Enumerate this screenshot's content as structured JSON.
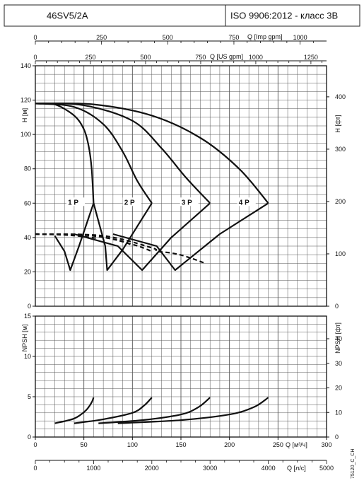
{
  "header": {
    "model": "46SV5/2A",
    "standard": "ISO 9906:2012 - класс 3B"
  },
  "side_code": "75120_C_CH",
  "chart_data": [
    {
      "type": "line",
      "name": "head",
      "ylabel": "H [м]",
      "ylabel_right": "H [фт]",
      "ylim": [
        0,
        140
      ],
      "yticks": [
        0,
        20,
        40,
        60,
        80,
        100,
        120,
        140
      ],
      "yticks_right": [
        0,
        100,
        200,
        300,
        400
      ],
      "xlim": [
        0,
        300
      ],
      "x_unit": "m3/h",
      "top_axes": [
        {
          "label": "Q [Imp gpm]",
          "ticks": [
            0,
            250,
            500,
            750,
            1000
          ]
        },
        {
          "label": "Q [US gpm]",
          "ticks": [
            0,
            250,
            500,
            750,
            1000,
            1250
          ]
        }
      ],
      "series": [
        {
          "name": "1 P",
          "values": [
            [
              0,
              118
            ],
            [
              20,
              117.5
            ],
            [
              40,
              111
            ],
            [
              50,
              103
            ],
            [
              55,
              93
            ],
            [
              58,
              80
            ],
            [
              60,
              60
            ]
          ]
        },
        {
          "name": "2 P",
          "values": [
            [
              0,
              118
            ],
            [
              40,
              116
            ],
            [
              70,
              106
            ],
            [
              90,
              90
            ],
            [
              105,
              73
            ],
            [
              120,
              60
            ]
          ]
        },
        {
          "name": "3 P",
          "values": [
            [
              0,
              118
            ],
            [
              50,
              117
            ],
            [
              100,
              108
            ],
            [
              130,
              92
            ],
            [
              155,
              75
            ],
            [
              180,
              60
            ]
          ]
        },
        {
          "name": "4 P",
          "values": [
            [
              0,
              118
            ],
            [
              60,
              117.5
            ],
            [
              120,
              111
            ],
            [
              170,
              98
            ],
            [
              210,
              80
            ],
            [
              240,
              60
            ]
          ]
        }
      ],
      "boundary": [
        {
          "values": [
            [
              20,
              41
            ],
            [
              30,
              32
            ],
            [
              36,
              21
            ],
            [
              45,
              35
            ],
            [
              60,
              60
            ]
          ]
        },
        {
          "values": [
            [
              60,
              60
            ],
            [
              72,
              35
            ],
            [
              74,
              21
            ],
            [
              90,
              33
            ],
            [
              120,
              60
            ]
          ]
        },
        {
          "values": [
            [
              40,
              42
            ],
            [
              85,
              35
            ],
            [
              110,
              21
            ],
            [
              140,
              40
            ],
            [
              180,
              60
            ]
          ]
        },
        {
          "values": [
            [
              80,
              42
            ],
            [
              125,
              35
            ],
            [
              144,
              21
            ],
            [
              190,
              42
            ],
            [
              240,
              60
            ]
          ]
        }
      ],
      "efficiency_dashed": [
        {
          "values": [
            [
              0,
              42
            ],
            [
              30,
              41.5
            ],
            [
              50,
              40.5
            ],
            [
              65,
              39.5
            ]
          ]
        },
        {
          "values": [
            [
              0,
              42
            ],
            [
              50,
              41.5
            ],
            [
              85,
              38.5
            ],
            [
              100,
              35.5
            ]
          ]
        },
        {
          "values": [
            [
              0,
              42
            ],
            [
              60,
              41
            ],
            [
              100,
              36
            ],
            [
              120,
              32
            ]
          ]
        },
        {
          "values": [
            [
              0,
              42
            ],
            [
              70,
              41
            ],
            [
              120,
              34
            ],
            [
              125,
              32
            ],
            [
              140,
              31
            ],
            [
              155,
              29
            ],
            [
              175,
              25
            ]
          ]
        }
      ],
      "labels": [
        {
          "text": "1 P",
          "x": 35,
          "y": 60
        },
        {
          "text": "2 P",
          "x": 93,
          "y": 60
        },
        {
          "text": "3 P",
          "x": 152,
          "y": 60
        },
        {
          "text": "4 P",
          "x": 211,
          "y": 60
        }
      ]
    },
    {
      "type": "line",
      "name": "npsh",
      "ylabel": "NPSH [м]",
      "ylabel_right": "NPSH [фт]",
      "ylim": [
        0,
        15
      ],
      "yticks": [
        0,
        5,
        10,
        15
      ],
      "yticks_right": [
        0,
        10,
        20,
        30,
        40
      ],
      "xlim": [
        0,
        300
      ],
      "bottom_axes": [
        {
          "label": "Q [м³/ч]",
          "ticks": [
            0,
            50,
            100,
            150,
            200,
            250,
            300
          ]
        },
        {
          "label": "Q [л/с]",
          "ticks": [
            0,
            1000,
            2000,
            3000,
            4000,
            5000
          ]
        }
      ],
      "series": [
        {
          "name": "1 P",
          "values": [
            [
              20,
              1.7
            ],
            [
              40,
              2.3
            ],
            [
              52,
              3.3
            ],
            [
              58,
              4.3
            ],
            [
              60,
              4.9
            ]
          ]
        },
        {
          "name": "2 P",
          "values": [
            [
              40,
              1.7
            ],
            [
              70,
              2.2
            ],
            [
              100,
              3.0
            ],
            [
              112,
              3.9
            ],
            [
              120,
              4.9
            ]
          ]
        },
        {
          "name": "3 P",
          "values": [
            [
              65,
              1.7
            ],
            [
              110,
              2.1
            ],
            [
              150,
              2.8
            ],
            [
              168,
              3.7
            ],
            [
              180,
              4.9
            ]
          ]
        },
        {
          "name": "4 P",
          "values": [
            [
              85,
              1.7
            ],
            [
              150,
              2.1
            ],
            [
              200,
              2.8
            ],
            [
              225,
              3.7
            ],
            [
              240,
              4.9
            ]
          ]
        }
      ]
    }
  ]
}
